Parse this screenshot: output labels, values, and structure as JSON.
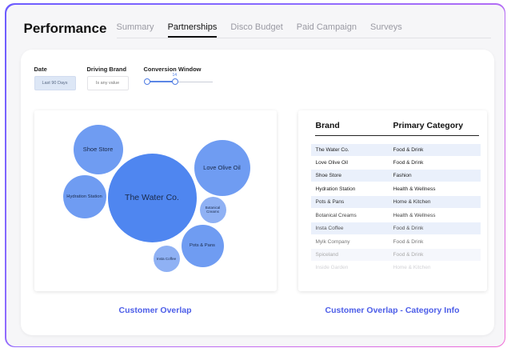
{
  "header": {
    "title": "Performance",
    "tabs": [
      {
        "label": "Summary",
        "active": false
      },
      {
        "label": "Partnerships",
        "active": true
      },
      {
        "label": "Disco Budget",
        "active": false
      },
      {
        "label": "Paid Campaign",
        "active": false
      },
      {
        "label": "Surveys",
        "active": false
      }
    ]
  },
  "filters": {
    "date": {
      "label": "Date",
      "value": "Last 90 Days"
    },
    "driving_brand": {
      "label": "Driving Brand",
      "value": "Is any value"
    },
    "conversion_window": {
      "label": "Conversion Window",
      "value": "14"
    }
  },
  "overlap": {
    "caption": "Customer Overlap",
    "bubbles": [
      {
        "label": "The Water Co."
      },
      {
        "label": "Shoe Store"
      },
      {
        "label": "Love Olive Oil"
      },
      {
        "label": "Hydration Station"
      },
      {
        "label": "Botanical Creams"
      },
      {
        "label": "Pots & Pans"
      },
      {
        "label": "Insta Coffee"
      }
    ]
  },
  "category_info": {
    "caption": "Customer Overlap - Category Info",
    "columns": [
      "Brand",
      "Primary Category"
    ],
    "rows": [
      {
        "brand": "The Water Co.",
        "category": "Food & Drink"
      },
      {
        "brand": "Love Olive Oil",
        "category": "Food & Drink"
      },
      {
        "brand": "Shoe Store",
        "category": "Fashion"
      },
      {
        "brand": "Hydration Station",
        "category": "Health & Wellness"
      },
      {
        "brand": "Pots & Pans",
        "category": "Home & Kitchen"
      },
      {
        "brand": "Botanical Creams",
        "category": "Health & Wellness"
      },
      {
        "brand": "Insta Coffee",
        "category": "Food & Drink"
      },
      {
        "brand": "Mylk Company",
        "category": "Food & Drink"
      },
      {
        "brand": "Spiceland",
        "category": "Food & Drink"
      },
      {
        "brand": "Inside Garden",
        "category": "Home & Kitchen"
      }
    ]
  },
  "colors": {
    "accent": "#4c5de8",
    "bubble_big": "#4f86f0",
    "bubble": "#6f9cf2",
    "row_shade": "#eaf0fb"
  }
}
